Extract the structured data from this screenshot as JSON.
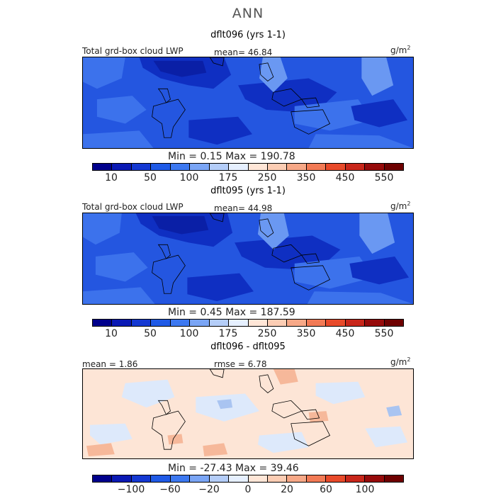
{
  "title": "ANN",
  "panels": [
    {
      "title": "dflt096 (yrs 1-1)",
      "left_label": "Total grd-box cloud LWP",
      "mean": "mean=  46.84",
      "units": "g/m",
      "units_exp": "2",
      "minmax": "Min =    0.15  Max =  190.78"
    },
    {
      "title": "dflt095 (yrs 1-1)",
      "left_label": "Total grd-box cloud LWP",
      "mean": "mean=  44.98",
      "units": "g/m",
      "units_exp": "2",
      "minmax": "Min =    0.45  Max =  187.59"
    },
    {
      "title": "dflt096 - dflt095",
      "left_label": "mean =   1.86",
      "mean": "rmse =   6.78",
      "units": "g/m",
      "units_exp": "2",
      "minmax": "Min = -27.43  Max =  39.46"
    }
  ],
  "colorbar_colors": [
    "#00008c",
    "#0a19b4",
    "#1438d2",
    "#1f5ae6",
    "#3c78f0",
    "#7aa5f5",
    "#b4cdf8",
    "#e6f0ff",
    "#ffe6d7",
    "#fccdb4",
    "#f7a887",
    "#f27a55",
    "#e84a2a",
    "#c8261a",
    "#960a0a",
    "#6e0000"
  ],
  "colorbar_ticks_abs": [
    "10",
    "50",
    "100",
    "175",
    "250",
    "350",
    "450",
    "550"
  ],
  "colorbar_ticks_diff": [
    "−100",
    "−60",
    "−20",
    "0",
    "20",
    "60",
    "100"
  ],
  "fill_colors": {
    "abs_base": "#2456e0",
    "abs_dark": "#0f2fc2",
    "abs_darker": "#0a1fa6",
    "abs_mid": "#3c72ec",
    "abs_light": "#6a98f2",
    "diff_base": "#fde5d6",
    "diff_light": "#dde9fb",
    "diff_warm": "#f6b89a",
    "diff_cool": "#a9c4f1"
  }
}
